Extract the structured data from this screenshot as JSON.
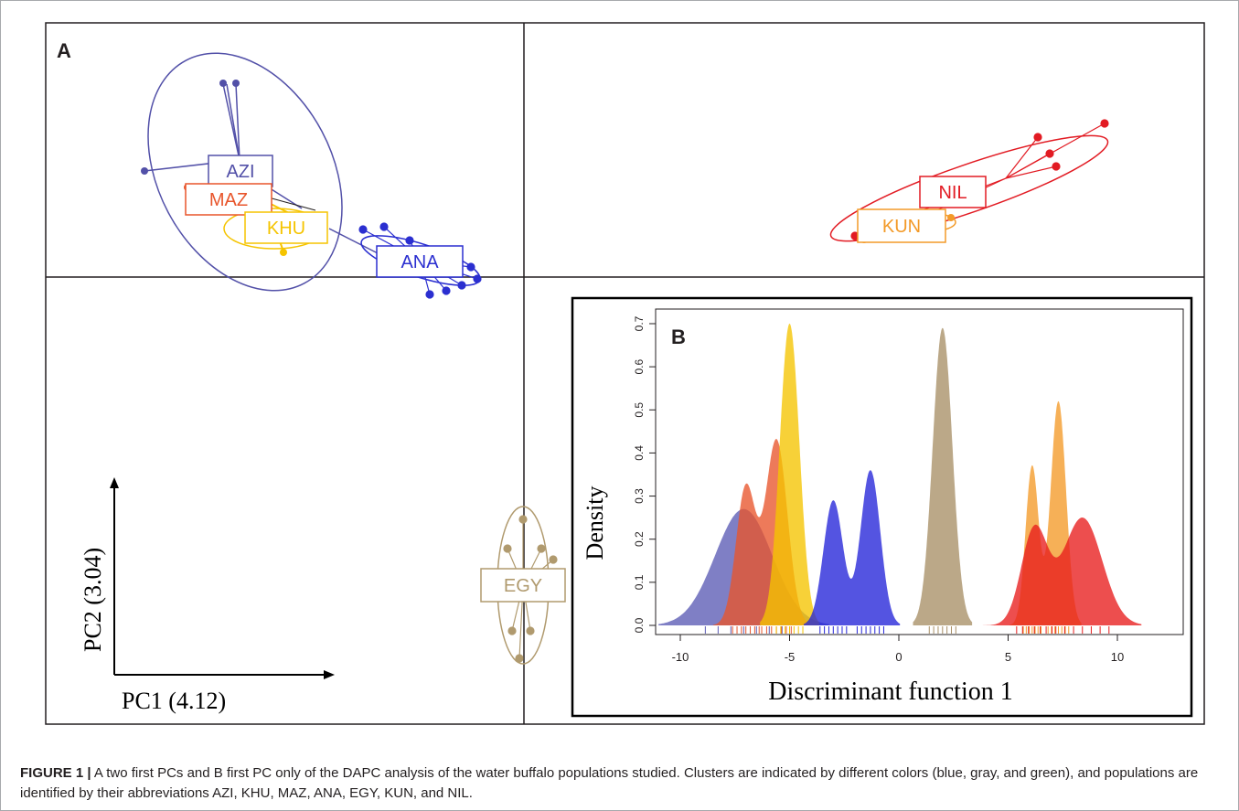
{
  "panel_a": {
    "label": "A",
    "x_axis_label": "PC1 (4.12)",
    "y_axis_label": "PC2 (3.04)",
    "populations": [
      {
        "name": "AZI",
        "color": "#5250a8"
      },
      {
        "name": "MAZ",
        "color": "#e8552b"
      },
      {
        "name": "KHU",
        "color": "#f5c400"
      },
      {
        "name": "ANA",
        "color": "#2b2fd0"
      },
      {
        "name": "EGY",
        "color": "#b09a6e"
      },
      {
        "name": "KUN",
        "color": "#f39a28"
      },
      {
        "name": "NIL",
        "color": "#e21b23"
      }
    ]
  },
  "chart_data": {
    "type": "area",
    "panel_label": "B",
    "xlabel": "Discriminant function 1",
    "ylabel": "Density",
    "xlim": [
      -10.5,
      12
    ],
    "ylim": [
      0,
      0.72
    ],
    "x_ticks": [
      -10,
      -5,
      0,
      5,
      10
    ],
    "y_ticks": [
      0.0,
      0.1,
      0.2,
      0.3,
      0.4,
      0.5,
      0.6,
      0.7
    ],
    "series": [
      {
        "color": "#5b5bb5",
        "peaks": [
          {
            "x": -7.1,
            "y": 0.27,
            "sd": 1.3
          }
        ]
      },
      {
        "color": "#e8552b",
        "peaks": [
          {
            "x": -7.0,
            "y": 0.32,
            "sd": 0.45
          },
          {
            "x": -5.6,
            "y": 0.43,
            "sd": 0.5
          }
        ]
      },
      {
        "color": "#f5c400",
        "peaks": [
          {
            "x": -5.0,
            "y": 0.7,
            "sd": 0.45
          }
        ]
      },
      {
        "color": "#2424d8",
        "peaks": [
          {
            "x": -3.0,
            "y": 0.29,
            "sd": 0.45
          },
          {
            "x": -1.3,
            "y": 0.36,
            "sd": 0.45
          }
        ]
      },
      {
        "color": "#a88f66",
        "peaks": [
          {
            "x": 2.0,
            "y": 0.69,
            "sd": 0.45
          }
        ]
      },
      {
        "color": "#f39a28",
        "peaks": [
          {
            "x": 6.1,
            "y": 0.37,
            "sd": 0.3
          },
          {
            "x": 7.3,
            "y": 0.52,
            "sd": 0.35
          }
        ]
      },
      {
        "color": "#e81c1c",
        "peaks": [
          {
            "x": 6.2,
            "y": 0.22,
            "sd": 0.6
          },
          {
            "x": 8.4,
            "y": 0.25,
            "sd": 0.9
          }
        ]
      }
    ]
  },
  "caption": {
    "prefix": "FIGURE 1 |",
    "text": " A two first PCs and B first PC only of the DAPC analysis of the water buffalo populations studied. Clusters are indicated by different colors (blue, gray, and green), and populations are identified by their abbreviations AZI, KHU, MAZ, ANA, EGY, KUN, and NIL."
  }
}
